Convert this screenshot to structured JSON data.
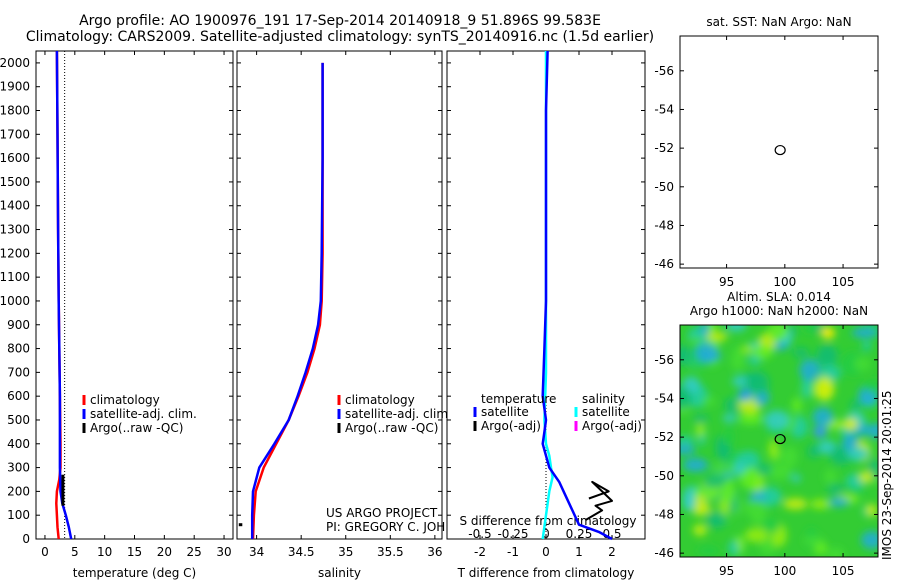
{
  "header": {
    "title_line1": "Argo profile: AO 1900976_191 17-Sep-2014 20140918_9 51.896S 99.583E",
    "title_line2": "Climatology: CARS2009. Satellite-adjusted climatology: synTS_20140916.nc (1.5d earlier)"
  },
  "colors": {
    "climatology": "#ff0000",
    "satellite": "#0000ff",
    "argo": "#000000",
    "sal_satellite": "#00ffff",
    "sal_argo": "#ff00ff"
  },
  "credits": {
    "project": "US ARGO PROJECT",
    "pi": "PI: GREGORY C. JOHNSON"
  },
  "timestamp": "IMOS 23-Sep-2014 20:01:25",
  "chart_data": [
    {
      "id": "temperature",
      "type": "line",
      "xlabel": "temperature (deg C)",
      "ylabel": "",
      "xlim": [
        -1.5,
        31.5
      ],
      "ylim": [
        2050,
        0
      ],
      "xticks": [
        0,
        5,
        10,
        15,
        20,
        25,
        30
      ],
      "xtick_labels": [
        "0",
        "5",
        "10",
        "15",
        "20",
        "25",
        "30"
      ],
      "yticks": [
        0,
        100,
        200,
        300,
        400,
        500,
        600,
        700,
        800,
        900,
        1000,
        1100,
        1200,
        1300,
        1400,
        1500,
        1600,
        1700,
        1800,
        1900,
        2000
      ],
      "ytick_labels": [
        "0",
        "100",
        "200",
        "300",
        "400",
        "500",
        "600",
        "700",
        "800",
        "900",
        "1000",
        "1100",
        "1200",
        "1300",
        "1400",
        "1500",
        "1600",
        "1700",
        "1800",
        "1900",
        "2000"
      ],
      "legend": [
        "climatology",
        "satellite-adj. clim.",
        "Argo(..raw -QC)"
      ],
      "series": [
        {
          "name": "climatology",
          "color": "#ff0000",
          "x": [
            2.3,
            2.1,
            2.0,
            1.9,
            2.0,
            2.4,
            2.6,
            2.6,
            2.5,
            2.4,
            2.3,
            2.2,
            2.1,
            2.0
          ],
          "y": [
            0,
            50,
            100,
            150,
            200,
            250,
            300,
            400,
            600,
            800,
            1000,
            1300,
            1700,
            2050
          ]
        },
        {
          "name": "satellite-adj. clim.",
          "color": "#0000ff",
          "x": [
            4.4,
            4.0,
            3.5,
            2.9,
            2.6,
            2.5,
            2.5,
            2.5,
            2.4,
            2.3,
            2.2,
            2.1,
            2.0
          ],
          "y": [
            0,
            50,
            100,
            150,
            200,
            300,
            400,
            600,
            800,
            1000,
            1300,
            1700,
            2050
          ]
        },
        {
          "name": "Argo(..raw -QC)",
          "color": "#000000",
          "x": [
            3.0,
            3.0
          ],
          "y": [
            140,
            270
          ]
        }
      ]
    },
    {
      "id": "salinity",
      "type": "line",
      "xlabel": "salinity",
      "xlim": [
        33.78,
        36.08
      ],
      "ylim": [
        2050,
        0
      ],
      "xticks": [
        34,
        34.5,
        35,
        35.5,
        36
      ],
      "xtick_labels": [
        "34",
        "34.5",
        "35",
        "35.5",
        "36"
      ],
      "legend": [
        "climatology",
        "satellite-adj. clim.",
        "Argo(..raw -QC)"
      ],
      "series": [
        {
          "name": "climatology",
          "color": "#ff0000",
          "x": [
            33.96,
            33.97,
            33.99,
            34.08,
            34.22,
            34.36,
            34.47,
            34.57,
            34.65,
            34.71,
            34.73,
            34.74,
            34.74,
            34.74
          ],
          "y": [
            0,
            100,
            200,
            300,
            400,
            500,
            600,
            700,
            800,
            900,
            1000,
            1200,
            1600,
            2000
          ]
        },
        {
          "name": "satellite-adj. clim.",
          "color": "#0000ff",
          "x": [
            33.95,
            33.95,
            33.96,
            34.03,
            34.2,
            34.36,
            34.46,
            34.55,
            34.63,
            34.69,
            34.72,
            34.73,
            34.74,
            34.74
          ],
          "y": [
            0,
            100,
            200,
            300,
            400,
            500,
            600,
            700,
            800,
            900,
            1000,
            1200,
            1600,
            2000
          ]
        },
        {
          "name": "Argo(..raw -QC)",
          "color": "#000000",
          "x": [
            33.8,
            33.84
          ],
          "y": [
            60,
            60
          ]
        }
      ]
    },
    {
      "id": "difference",
      "type": "line",
      "xlabel": "T difference from climatology",
      "xlabel_top": "S difference from climatology",
      "xlim": [
        -3,
        3
      ],
      "ylim": [
        2050,
        0
      ],
      "xticks": [
        -2,
        -1,
        0,
        1,
        2
      ],
      "xtick_labels": [
        "-2",
        "-1",
        "0",
        "1",
        "2"
      ],
      "xticks_top": [
        -0.5,
        -0.25,
        0,
        0.25,
        0.5
      ],
      "xtick_labels_top": [
        "-0.5",
        "-0.25",
        "0",
        "0.25",
        "0.5"
      ],
      "legend_headers": [
        "temperature",
        "salinity"
      ],
      "legend": [
        "satellite",
        "Argo(-adj)",
        "satellite",
        "Argo(-adj)"
      ],
      "series": [
        {
          "name": "satellite",
          "color": "#0000ff",
          "x": [
            2.0,
            1.6,
            1.0,
            0.8,
            0.6,
            0.4,
            0.1,
            0.0,
            -0.1,
            -0.05,
            0.0,
            -0.1,
            -0.05,
            0.0,
            0.0,
            0.0,
            0.0,
            0.05
          ],
          "y": [
            0,
            30,
            60,
            120,
            180,
            240,
            300,
            350,
            400,
            450,
            500,
            600,
            800,
            1000,
            1200,
            1500,
            1800,
            2050
          ]
        },
        {
          "name": "satellite (salinity)",
          "color": "#00ffff",
          "x": [
            -0.1,
            0.0,
            0.1,
            0.2,
            0.15,
            0.1,
            0.0,
            -0.05,
            0.0,
            0.0,
            0.0,
            0.0,
            0.0
          ],
          "y": [
            0,
            100,
            200,
            260,
            300,
            350,
            400,
            500,
            700,
            1000,
            1400,
            1800,
            2050
          ]
        },
        {
          "name": "Argo(-adj)",
          "color": "#000000",
          "x": [
            1.2,
            1.7,
            1.5,
            2.0,
            1.4,
            1.9,
            1.3
          ],
          "y": [
            80,
            120,
            140,
            160,
            240,
            200,
            170
          ]
        }
      ]
    },
    {
      "id": "map-sst",
      "type": "scatter",
      "title": "sat. SST: NaN Argo: NaN",
      "xlim": [
        91,
        108
      ],
      "ylim": [
        -57.8,
        -45.8
      ],
      "xticks": [
        95,
        100,
        105
      ],
      "xtick_labels": [
        "95",
        "100",
        "105"
      ],
      "yticks": [
        -46,
        -48,
        -50,
        -52,
        -54,
        -56
      ],
      "ytick_labels": [
        "-46",
        "-48",
        "-50",
        "-52",
        "-54",
        "-56"
      ],
      "points": [
        {
          "x": 99.6,
          "y": -51.9
        }
      ]
    },
    {
      "id": "map-sla",
      "type": "heatmap",
      "title_line1": "Altim. SLA: 0.014",
      "title_line2": "Argo h1000: NaN h2000: NaN",
      "xlim": [
        91,
        108
      ],
      "ylim": [
        -57.8,
        -45.8
      ],
      "xticks": [
        95,
        100,
        105
      ],
      "xtick_labels": [
        "95",
        "100",
        "105"
      ],
      "yticks": [
        -46,
        -48,
        -50,
        -52,
        -54,
        -56
      ],
      "ytick_labels": [
        "-46",
        "-48",
        "-50",
        "-52",
        "-54",
        "-56"
      ],
      "points": [
        {
          "x": 99.6,
          "y": -51.9
        }
      ]
    }
  ]
}
